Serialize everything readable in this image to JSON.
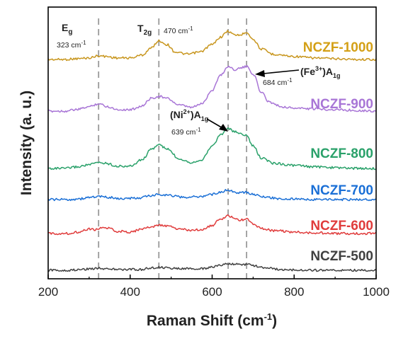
{
  "chart_data": {
    "type": "line",
    "title": "",
    "xlabel": "Raman Shift (cm",
    "xlabel_sup": "-1",
    "xlabel_close": ")",
    "ylabel": "Intensity (a. u.)",
    "xlim": [
      200,
      1000
    ],
    "xticks": [
      "200",
      "400",
      "600",
      "800",
      "1000"
    ],
    "grid": false,
    "series": [
      {
        "name": "NCZF-1000",
        "color": "#c8961e",
        "label_color": "#d4a017",
        "points": [
          [
            200,
            0.0
          ],
          [
            240,
            0.0
          ],
          [
            270,
            0.01
          ],
          [
            300,
            0.02
          ],
          [
            323,
            0.05
          ],
          [
            340,
            0.04
          ],
          [
            370,
            0.02
          ],
          [
            400,
            0.02
          ],
          [
            430,
            0.06
          ],
          [
            450,
            0.15
          ],
          [
            470,
            0.25
          ],
          [
            490,
            0.2
          ],
          [
            510,
            0.1
          ],
          [
            540,
            0.07
          ],
          [
            570,
            0.1
          ],
          [
            600,
            0.2
          ],
          [
            620,
            0.3
          ],
          [
            639,
            0.38
          ],
          [
            655,
            0.33
          ],
          [
            670,
            0.33
          ],
          [
            684,
            0.37
          ],
          [
            700,
            0.27
          ],
          [
            720,
            0.14
          ],
          [
            750,
            0.07
          ],
          [
            800,
            0.04
          ],
          [
            850,
            0.02
          ],
          [
            900,
            0.01
          ],
          [
            950,
            0.0
          ],
          [
            1000,
            0.0
          ]
        ]
      },
      {
        "name": "NCZF-900",
        "color": "#a875d6",
        "label_color": "#a875d6",
        "points": [
          [
            200,
            0.0
          ],
          [
            240,
            0.0
          ],
          [
            270,
            0.02
          ],
          [
            300,
            0.06
          ],
          [
            323,
            0.1
          ],
          [
            345,
            0.06
          ],
          [
            370,
            0.02
          ],
          [
            400,
            0.02
          ],
          [
            430,
            0.07
          ],
          [
            450,
            0.17
          ],
          [
            470,
            0.2
          ],
          [
            490,
            0.17
          ],
          [
            520,
            0.08
          ],
          [
            550,
            0.05
          ],
          [
            575,
            0.1
          ],
          [
            600,
            0.28
          ],
          [
            620,
            0.48
          ],
          [
            639,
            0.6
          ],
          [
            655,
            0.56
          ],
          [
            670,
            0.58
          ],
          [
            684,
            0.6
          ],
          [
            700,
            0.5
          ],
          [
            720,
            0.25
          ],
          [
            740,
            0.12
          ],
          [
            770,
            0.06
          ],
          [
            800,
            0.04
          ],
          [
            850,
            0.03
          ],
          [
            900,
            0.02
          ],
          [
            950,
            0.01
          ],
          [
            1000,
            0.0
          ]
        ]
      },
      {
        "name": "NCZF-800",
        "color": "#2aa16a",
        "label_color": "#2aa16a",
        "points": [
          [
            200,
            0.0
          ],
          [
            240,
            0.0
          ],
          [
            270,
            0.02
          ],
          [
            300,
            0.05
          ],
          [
            323,
            0.08
          ],
          [
            340,
            0.07
          ],
          [
            370,
            0.03
          ],
          [
            400,
            0.03
          ],
          [
            430,
            0.12
          ],
          [
            450,
            0.25
          ],
          [
            470,
            0.32
          ],
          [
            490,
            0.26
          ],
          [
            520,
            0.13
          ],
          [
            550,
            0.08
          ],
          [
            575,
            0.12
          ],
          [
            600,
            0.3
          ],
          [
            620,
            0.45
          ],
          [
            639,
            0.54
          ],
          [
            655,
            0.49
          ],
          [
            670,
            0.47
          ],
          [
            684,
            0.44
          ],
          [
            700,
            0.3
          ],
          [
            720,
            0.14
          ],
          [
            750,
            0.07
          ],
          [
            800,
            0.04
          ],
          [
            850,
            0.02
          ],
          [
            900,
            0.01
          ],
          [
            950,
            0.0
          ],
          [
            1000,
            0.0
          ]
        ]
      },
      {
        "name": "NCZF-700",
        "color": "#1a6fd6",
        "label_color": "#1a6fd6",
        "points": [
          [
            200,
            0.0
          ],
          [
            250,
            0.0
          ],
          [
            280,
            0.01
          ],
          [
            300,
            0.03
          ],
          [
            323,
            0.04
          ],
          [
            345,
            0.03
          ],
          [
            380,
            0.01
          ],
          [
            420,
            0.02
          ],
          [
            450,
            0.05
          ],
          [
            470,
            0.07
          ],
          [
            490,
            0.06
          ],
          [
            530,
            0.03
          ],
          [
            570,
            0.04
          ],
          [
            600,
            0.07
          ],
          [
            620,
            0.1
          ],
          [
            639,
            0.13
          ],
          [
            655,
            0.1
          ],
          [
            670,
            0.09
          ],
          [
            684,
            0.1
          ],
          [
            700,
            0.07
          ],
          [
            730,
            0.03
          ],
          [
            770,
            0.01
          ],
          [
            850,
            0.0
          ],
          [
            1000,
            0.0
          ]
        ]
      },
      {
        "name": "NCZF-600",
        "color": "#e03c3c",
        "label_color": "#e03c3c",
        "points": [
          [
            200,
            0.0
          ],
          [
            250,
            0.0
          ],
          [
            270,
            0.02
          ],
          [
            300,
            0.06
          ],
          [
            315,
            0.05
          ],
          [
            330,
            0.08
          ],
          [
            345,
            0.07
          ],
          [
            370,
            0.03
          ],
          [
            400,
            0.02
          ],
          [
            430,
            0.06
          ],
          [
            450,
            0.09
          ],
          [
            470,
            0.11
          ],
          [
            490,
            0.1
          ],
          [
            520,
            0.06
          ],
          [
            550,
            0.04
          ],
          [
            580,
            0.06
          ],
          [
            600,
            0.11
          ],
          [
            620,
            0.19
          ],
          [
            639,
            0.24
          ],
          [
            655,
            0.2
          ],
          [
            670,
            0.18
          ],
          [
            684,
            0.19
          ],
          [
            700,
            0.13
          ],
          [
            720,
            0.07
          ],
          [
            750,
            0.04
          ],
          [
            800,
            0.02
          ],
          [
            850,
            0.01
          ],
          [
            900,
            0.0
          ],
          [
            1000,
            0.0
          ]
        ]
      },
      {
        "name": "NCZF-500",
        "color": "#404040",
        "label_color": "#404040",
        "points": [
          [
            200,
            0.0
          ],
          [
            250,
            0.0
          ],
          [
            280,
            0.01
          ],
          [
            300,
            0.02
          ],
          [
            323,
            0.03
          ],
          [
            345,
            0.02
          ],
          [
            380,
            0.01
          ],
          [
            420,
            0.01
          ],
          [
            450,
            0.03
          ],
          [
            470,
            0.04
          ],
          [
            490,
            0.03
          ],
          [
            530,
            0.02
          ],
          [
            570,
            0.02
          ],
          [
            600,
            0.04
          ],
          [
            620,
            0.07
          ],
          [
            639,
            0.09
          ],
          [
            655,
            0.08
          ],
          [
            670,
            0.08
          ],
          [
            684,
            0.08
          ],
          [
            700,
            0.06
          ],
          [
            730,
            0.03
          ],
          [
            770,
            0.01
          ],
          [
            850,
            0.0
          ],
          [
            1000,
            0.0
          ]
        ]
      }
    ],
    "reference_lines": [
      323,
      470,
      639,
      684
    ],
    "annotations": {
      "eg_main": "E",
      "eg_sub": "g",
      "eg_value": "323 cm",
      "eg_value_sup": "-1",
      "t2g_main": "T",
      "t2g_sub": "2g",
      "t2g_value": "470 cm",
      "t2g_value_sup": "-1",
      "ni_prefix": "(Ni",
      "ni_sup": "2+",
      "ni_mid": ")A",
      "ni_sub": "1g",
      "ni_value": "639 cm",
      "ni_value_sup": "-1",
      "fe_prefix": "(Fe",
      "fe_sup": "3+",
      "fe_mid": ")A",
      "fe_sub": "1g",
      "fe_value": "684 cm",
      "fe_value_sup": "-1"
    }
  }
}
